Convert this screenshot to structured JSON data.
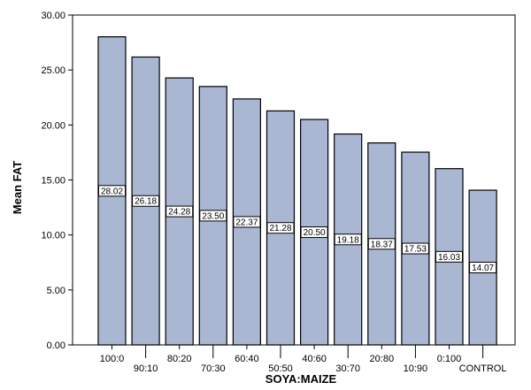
{
  "chart_data": {
    "type": "bar",
    "title": "",
    "xlabel": "SOYA:MAIZE",
    "ylabel": "Mean FAT",
    "categories": [
      "100:0",
      "90:10",
      "80:20",
      "70:30",
      "60:40",
      "50:50",
      "40:60",
      "30:70",
      "20:80",
      "10:90",
      "0:100",
      "CONTROL"
    ],
    "values": [
      28.02,
      26.18,
      24.28,
      23.5,
      22.37,
      21.28,
      20.5,
      19.18,
      18.37,
      17.53,
      16.03,
      14.07
    ],
    "value_labels": [
      "28.02",
      "26.18",
      "24.28",
      "23.50",
      "22.37",
      "21.28",
      "20.50",
      "19.18",
      "18.37",
      "17.53",
      "16.03",
      "14.07"
    ],
    "y_ticks": [
      "0.00",
      "5.00",
      "10.00",
      "15.00",
      "20.00",
      "25.00",
      "30.00"
    ],
    "ylim": [
      0,
      30
    ],
    "grid": false,
    "bar_color": "#a9b7d3",
    "bar_edge_color": "#000000"
  }
}
